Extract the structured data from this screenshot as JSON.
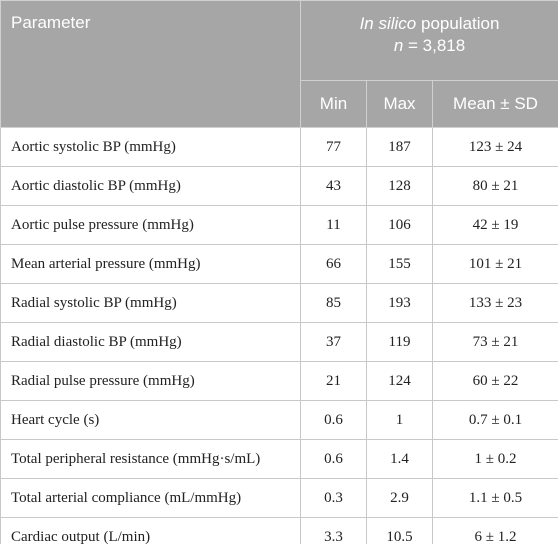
{
  "table": {
    "header": {
      "parameter": "Parameter",
      "group_title": {
        "italic": "In silico",
        "text": "population"
      },
      "group_subtitle": {
        "italic": "n",
        "text": "= 3,818"
      },
      "columns": [
        "Min",
        "Max",
        "Mean ± SD"
      ]
    },
    "rows": [
      [
        "Aortic systolic BP (mmHg)",
        "77",
        "187",
        "123 ± 24"
      ],
      [
        "Aortic diastolic BP (mmHg)",
        "43",
        "128",
        "80 ± 21"
      ],
      [
        "Aortic pulse pressure (mmHg)",
        "11",
        "106",
        "42 ± 19"
      ],
      [
        "Mean arterial pressure (mmHg)",
        "66",
        "155",
        "101 ± 21"
      ],
      [
        "Radial systolic BP (mmHg)",
        "85",
        "193",
        "133 ± 23"
      ],
      [
        "Radial diastolic BP (mmHg)",
        "37",
        "119",
        "73 ± 21"
      ],
      [
        "Radial pulse pressure (mmHg)",
        "21",
        "124",
        "60 ± 22"
      ],
      [
        "Heart cycle (s)",
        "0.6",
        "1",
        "0.7 ± 0.1"
      ],
      [
        "Total peripheral resistance (mmHg·s/mL)",
        "0.6",
        "1.4",
        "1 ± 0.2"
      ],
      [
        "Total arterial compliance (mL/mmHg)",
        "0.3",
        "2.9",
        "1.1 ± 0.5"
      ],
      [
        "Cardiac output (L/min)",
        "3.3",
        "10.5",
        "6 ± 1.2"
      ]
    ]
  }
}
